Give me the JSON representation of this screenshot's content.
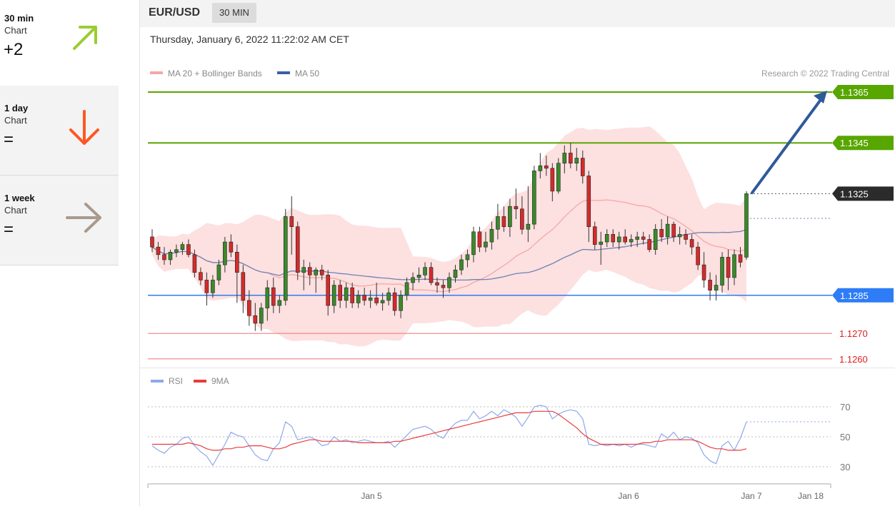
{
  "sidebar": {
    "items": [
      {
        "period": "30 min",
        "kind": "Chart",
        "value": "+2",
        "icon": "arrow-up-right-icon",
        "color": "#9acd32"
      },
      {
        "period": "1 day",
        "kind": "Chart",
        "value": "=",
        "icon": "arrow-down-icon",
        "color": "#ff5722"
      },
      {
        "period": "1 week",
        "kind": "Chart",
        "value": "=",
        "icon": "arrow-right-icon",
        "color": "#a89a8e"
      }
    ]
  },
  "header": {
    "symbol": "EUR/USD",
    "timeframe": "30 MIN",
    "datetime": "Thursday, January 6, 2022 11:22:02 AM CET"
  },
  "colors": {
    "resistance": "#58a600",
    "support": "#2e7cf6",
    "target_low": "#f08080",
    "last_price": "#2b2b2b",
    "ma20": "#f4a7a7",
    "bands_fill": "#fde0e0",
    "ma50": "#6e82b5",
    "arrow": "#2e5a9c",
    "rsi": "#8fa8ec",
    "rsi_ma": "#e83c3c",
    "candle_up": "#3a8a2a",
    "candle_down": "#d42b2b"
  },
  "chart_data": [
    {
      "type": "candlestick",
      "title": "EUR/USD",
      "credit": "Research © 2022 Trading Central",
      "legend": [
        {
          "label": "MA 20 + Bollinger Bands",
          "color": "#f4a7a7"
        },
        {
          "label": "MA 50",
          "color": "#3a5fa8"
        }
      ],
      "legend_position": "top-left",
      "x_ticks": [
        "Jan 5",
        "Jan 6",
        "Jan 7",
        "Jan 18"
      ],
      "y_range": [
        1.1255,
        1.1375
      ],
      "levels": [
        {
          "label": "1.1365",
          "value": 1.1365,
          "kind": "resistance"
        },
        {
          "label": "1.1345",
          "value": 1.1345,
          "kind": "resistance"
        },
        {
          "label": "1.1325",
          "value": 1.1325,
          "kind": "last"
        },
        {
          "label": "1.1285",
          "value": 1.1285,
          "kind": "support"
        },
        {
          "label": "1.1270",
          "value": 1.127,
          "kind": "target"
        },
        {
          "label": "1.1260",
          "value": 1.126,
          "kind": "target"
        }
      ],
      "candles": [
        [
          1.1308,
          1.1311,
          1.1302,
          1.1304
        ],
        [
          1.1304,
          1.1306,
          1.1299,
          1.1301
        ],
        [
          1.1301,
          1.1304,
          1.1297,
          1.1299
        ],
        [
          1.1299,
          1.1303,
          1.1297,
          1.1302
        ],
        [
          1.1302,
          1.1305,
          1.13,
          1.1303
        ],
        [
          1.1303,
          1.1306,
          1.1301,
          1.1305
        ],
        [
          1.1305,
          1.1307,
          1.13,
          1.1301
        ],
        [
          1.1301,
          1.1303,
          1.1292,
          1.1294
        ],
        [
          1.1294,
          1.1296,
          1.1289,
          1.1291
        ],
        [
          1.1291,
          1.1294,
          1.1281,
          1.1286
        ],
        [
          1.1286,
          1.1293,
          1.1284,
          1.1291
        ],
        [
          1.1291,
          1.1299,
          1.1289,
          1.1297
        ],
        [
          1.1297,
          1.1308,
          1.1294,
          1.1306
        ],
        [
          1.1306,
          1.1309,
          1.13,
          1.1302
        ],
        [
          1.1302,
          1.1305,
          1.1282,
          1.1294
        ],
        [
          1.1294,
          1.1297,
          1.1278,
          1.1283
        ],
        [
          1.1283,
          1.1287,
          1.1273,
          1.1277
        ],
        [
          1.1277,
          1.1282,
          1.1271,
          1.1274
        ],
        [
          1.1274,
          1.1282,
          1.1271,
          1.128
        ],
        [
          1.128,
          1.1291,
          1.1275,
          1.1288
        ],
        [
          1.1288,
          1.1292,
          1.1278,
          1.1281
        ],
        [
          1.1281,
          1.1285,
          1.1278,
          1.1283
        ],
        [
          1.1283,
          1.1319,
          1.1281,
          1.1316
        ],
        [
          1.1316,
          1.1324,
          1.1301,
          1.1312
        ],
        [
          1.1312,
          1.1314,
          1.1291,
          1.1294
        ],
        [
          1.1294,
          1.1299,
          1.1287,
          1.1296
        ],
        [
          1.1296,
          1.1298,
          1.1289,
          1.1293
        ],
        [
          1.1293,
          1.1296,
          1.1286,
          1.1295
        ],
        [
          1.1295,
          1.1297,
          1.1291,
          1.1293
        ],
        [
          1.1293,
          1.1295,
          1.1277,
          1.1281
        ],
        [
          1.1281,
          1.1291,
          1.1278,
          1.1289
        ],
        [
          1.1289,
          1.1291,
          1.128,
          1.1283
        ],
        [
          1.1283,
          1.129,
          1.128,
          1.1288
        ],
        [
          1.1288,
          1.129,
          1.128,
          1.1282
        ],
        [
          1.1282,
          1.1287,
          1.128,
          1.1285
        ],
        [
          1.1285,
          1.1288,
          1.1281,
          1.1283
        ],
        [
          1.1283,
          1.1287,
          1.128,
          1.1284
        ],
        [
          1.1284,
          1.129,
          1.1281,
          1.1282
        ],
        [
          1.1282,
          1.1286,
          1.1279,
          1.1283
        ],
        [
          1.1283,
          1.1288,
          1.1281,
          1.1286
        ],
        [
          1.1286,
          1.1288,
          1.1277,
          1.1279
        ],
        [
          1.1279,
          1.1287,
          1.1276,
          1.1285
        ],
        [
          1.1285,
          1.1292,
          1.1283,
          1.129
        ],
        [
          1.129,
          1.1294,
          1.1287,
          1.1292
        ],
        [
          1.1292,
          1.1296,
          1.129,
          1.1293
        ],
        [
          1.1293,
          1.1298,
          1.1291,
          1.1296
        ],
        [
          1.1296,
          1.1298,
          1.1289,
          1.129
        ],
        [
          1.129,
          1.1292,
          1.1286,
          1.1289
        ],
        [
          1.1289,
          1.1291,
          1.1284,
          1.1288
        ],
        [
          1.1288,
          1.1294,
          1.1286,
          1.1292
        ],
        [
          1.1292,
          1.1297,
          1.129,
          1.1295
        ],
        [
          1.1295,
          1.1301,
          1.1293,
          1.1299
        ],
        [
          1.1299,
          1.1303,
          1.1296,
          1.1301
        ],
        [
          1.1301,
          1.1312,
          1.1298,
          1.131
        ],
        [
          1.131,
          1.1312,
          1.1302,
          1.1304
        ],
        [
          1.1304,
          1.131,
          1.1302,
          1.1306
        ],
        [
          1.1306,
          1.1314,
          1.1303,
          1.1311
        ],
        [
          1.1311,
          1.1321,
          1.1307,
          1.1316
        ],
        [
          1.1316,
          1.132,
          1.131,
          1.1312
        ],
        [
          1.1312,
          1.1323,
          1.1308,
          1.132
        ],
        [
          1.132,
          1.1327,
          1.1315,
          1.1319
        ],
        [
          1.1319,
          1.1324,
          1.1309,
          1.1311
        ],
        [
          1.1311,
          1.1328,
          1.1306,
          1.1313
        ],
        [
          1.1313,
          1.1336,
          1.1311,
          1.1334
        ],
        [
          1.1334,
          1.1341,
          1.1331,
          1.1336
        ],
        [
          1.1336,
          1.134,
          1.1332,
          1.1335
        ],
        [
          1.1335,
          1.1337,
          1.1322,
          1.1326
        ],
        [
          1.1326,
          1.1339,
          1.1325,
          1.1337
        ],
        [
          1.1337,
          1.1344,
          1.1333,
          1.1341
        ],
        [
          1.1341,
          1.1345,
          1.1335,
          1.1337
        ],
        [
          1.1337,
          1.1343,
          1.1334,
          1.1339
        ],
        [
          1.1339,
          1.1342,
          1.1329,
          1.1332
        ],
        [
          1.1332,
          1.1334,
          1.1306,
          1.1312
        ],
        [
          1.1312,
          1.1314,
          1.1303,
          1.1305
        ],
        [
          1.1305,
          1.131,
          1.1297,
          1.1306
        ],
        [
          1.1306,
          1.1311,
          1.1304,
          1.1309
        ],
        [
          1.1309,
          1.1311,
          1.1304,
          1.1306
        ],
        [
          1.1306,
          1.131,
          1.1303,
          1.1308
        ],
        [
          1.1308,
          1.1311,
          1.1305,
          1.1306
        ],
        [
          1.1306,
          1.1309,
          1.1304,
          1.1307
        ],
        [
          1.1307,
          1.131,
          1.1304,
          1.1308
        ],
        [
          1.1308,
          1.131,
          1.1305,
          1.1307
        ],
        [
          1.1307,
          1.1309,
          1.1302,
          1.1303
        ],
        [
          1.1303,
          1.1313,
          1.1301,
          1.1311
        ],
        [
          1.1311,
          1.1315,
          1.1306,
          1.1308
        ],
        [
          1.1308,
          1.1316,
          1.1305,
          1.1313
        ],
        [
          1.1313,
          1.1314,
          1.1306,
          1.1308
        ],
        [
          1.1308,
          1.1312,
          1.1305,
          1.1309
        ],
        [
          1.1309,
          1.1311,
          1.1305,
          1.1307
        ],
        [
          1.1307,
          1.1309,
          1.1301,
          1.1304
        ],
        [
          1.1304,
          1.1306,
          1.1295,
          1.1297
        ],
        [
          1.1297,
          1.1302,
          1.1288,
          1.1291
        ],
        [
          1.1291,
          1.1294,
          1.1283,
          1.1287
        ],
        [
          1.1287,
          1.1293,
          1.1283,
          1.1289
        ],
        [
          1.1289,
          1.1302,
          1.1286,
          1.13
        ],
        [
          1.13,
          1.1303,
          1.1287,
          1.1292
        ],
        [
          1.1292,
          1.1303,
          1.1289,
          1.1301
        ],
        [
          1.1301,
          1.1304,
          1.1296,
          1.1298
        ],
        [
          1.13,
          1.1326,
          1.1299,
          1.1325
        ]
      ]
    },
    {
      "type": "line",
      "title": "RSI",
      "legend": [
        {
          "label": "RSI",
          "color": "#8fa8ec"
        },
        {
          "label": "9MA",
          "color": "#e83c3c"
        }
      ],
      "y_ticks": [
        "70",
        "50",
        "30"
      ],
      "y_range": [
        25,
        80
      ],
      "series": [
        {
          "name": "RSI",
          "values": [
            44,
            41,
            39,
            43,
            45,
            49,
            50,
            44,
            40,
            37,
            31,
            38,
            45,
            53,
            51,
            50,
            44,
            38,
            35,
            34,
            42,
            46,
            60,
            57,
            48,
            49,
            50,
            48,
            44,
            45,
            50,
            47,
            48,
            46,
            47,
            48,
            47,
            46,
            46,
            47,
            43,
            47,
            51,
            55,
            56,
            57,
            55,
            51,
            49,
            55,
            59,
            61,
            61,
            67,
            62,
            64,
            67,
            64,
            68,
            66,
            63,
            57,
            63,
            70,
            71,
            70,
            62,
            65,
            67,
            68,
            67,
            62,
            45,
            44,
            45,
            44,
            45,
            44,
            45,
            43,
            45,
            45,
            44,
            43,
            52,
            49,
            53,
            48,
            50,
            49,
            46,
            38,
            34,
            32,
            44,
            47,
            41,
            49,
            60
          ]
        },
        {
          "name": "9MA",
          "values": [
            45,
            45,
            45,
            45,
            45,
            45,
            46,
            45,
            44,
            42,
            41,
            41,
            42,
            42,
            43,
            43,
            44,
            44,
            44,
            43,
            42,
            42,
            43,
            45,
            46,
            47,
            48,
            48,
            47,
            47,
            47,
            47,
            47,
            47,
            46,
            46,
            46,
            46,
            46,
            46,
            47,
            47,
            48,
            49,
            50,
            51,
            52,
            53,
            54,
            55,
            56,
            57,
            58,
            59,
            60,
            61,
            62,
            63,
            64,
            65,
            66,
            66,
            66,
            67,
            67,
            67,
            67,
            65,
            62,
            59,
            56,
            52,
            49,
            47,
            45,
            45,
            45,
            45,
            45,
            45,
            45,
            46,
            46,
            47,
            47,
            48,
            48,
            48,
            48,
            48,
            47,
            45,
            43,
            42,
            42,
            41,
            41,
            41,
            42
          ]
        }
      ]
    }
  ]
}
